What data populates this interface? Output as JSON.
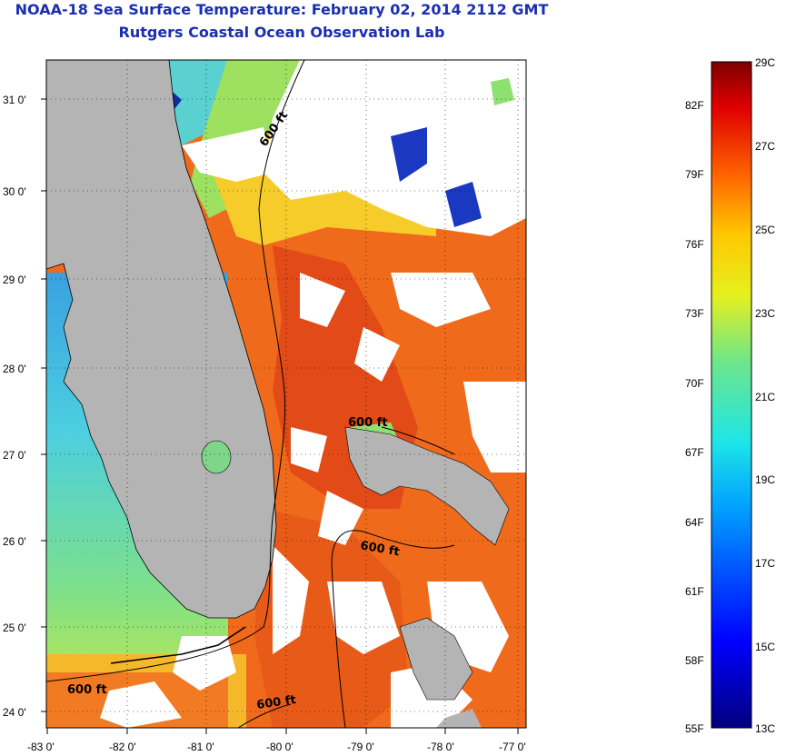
{
  "header": {
    "title": "NOAA-18 Sea Surface Temperature:  February 02, 2014 2112 GMT",
    "subtitle": "Rutgers Coastal Ocean Observation Lab"
  },
  "map": {
    "region": "Florida peninsula and Bahamas",
    "lat_labels": [
      "31 0'",
      "30 0'",
      "29 0'",
      "28 0'",
      "27 0'",
      "26 0'",
      "25 0'",
      "24 0'"
    ],
    "lon_labels": [
      "-83 0'",
      "-82 0'",
      "-81 0'",
      "-80 0'",
      "-79 0'",
      "-78 0'",
      "-77 0'"
    ],
    "contour_label": "600 ft",
    "colors": {
      "land": "#b4b4b4",
      "cloud": "#ffffff",
      "warm": "#f06a1c",
      "hot": "#e03a1a",
      "mid": "#f4c22a",
      "cool": "#5ac8e6",
      "cold": "#102aa8"
    }
  },
  "colorbar": {
    "celsius_labels": [
      "29C",
      "27C",
      "25C",
      "23C",
      "21C",
      "19C",
      "17C",
      "15C",
      "13C"
    ],
    "fahrenheit_labels": [
      "82F",
      "79F",
      "76F",
      "73F",
      "70F",
      "67F",
      "64F",
      "61F",
      "58F",
      "55F"
    ],
    "range_c": [
      13,
      29
    ]
  }
}
